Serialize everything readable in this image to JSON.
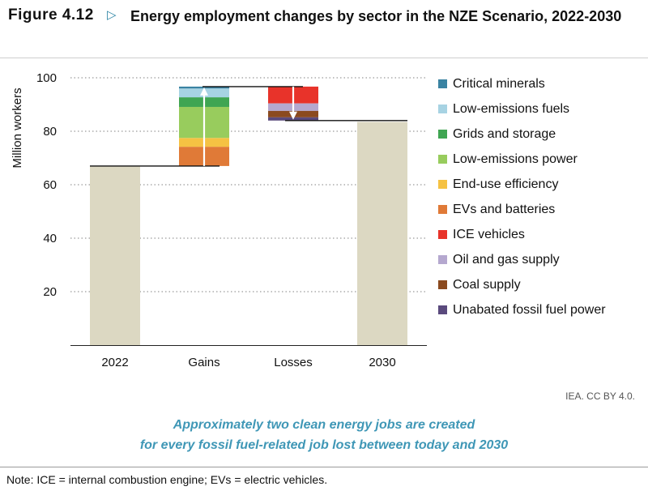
{
  "header": {
    "figure_label": "Figure 4.12",
    "arrow_glyph": "▷",
    "title": "Energy employment changes by sector in the NZE Scenario, 2022-2030"
  },
  "chart_data": {
    "type": "bar",
    "subtype": "waterfall",
    "categories": [
      "2022",
      "Gains",
      "Losses",
      "2030"
    ],
    "ylabel": "Million workers",
    "ylim": [
      0,
      100
    ],
    "yticks": [
      20,
      40,
      60,
      80,
      100
    ],
    "grid": "dotted horizontal",
    "legend_position": "right",
    "totals": [
      {
        "category": "2022",
        "value": 67,
        "color": "#dcd8c2"
      },
      {
        "category": "2030",
        "value": 83.5,
        "color": "#dcd8c2"
      }
    ],
    "series": [
      {
        "name": "Critical minerals",
        "color": "#3a83a2",
        "gains": 0.7,
        "losses": 0
      },
      {
        "name": "Low-emissions fuels",
        "color": "#a7d3e3",
        "gains": 3.3,
        "losses": 0
      },
      {
        "name": "Grids and storage",
        "color": "#3fa552",
        "gains": 3.6,
        "losses": 0
      },
      {
        "name": "Low-emissions power",
        "color": "#98cc5d",
        "gains": 11.6,
        "losses": 0
      },
      {
        "name": "End-use efficiency",
        "color": "#f5c243",
        "gains": 3.3,
        "losses": 0
      },
      {
        "name": "EVs and batteries",
        "color": "#e07a37",
        "gains": 7.2,
        "losses": 0
      },
      {
        "name": "ICE vehicles",
        "color": "#e8332a",
        "gains": 0,
        "losses": 6.3
      },
      {
        "name": "Oil and gas supply",
        "color": "#b5a8cf",
        "gains": 0,
        "losses": 2.8
      },
      {
        "name": "Coal supply",
        "color": "#8b4a1f",
        "gains": 0,
        "losses": 2.4
      },
      {
        "name": "Unabated fossil fuel power",
        "color": "#5a4a7d",
        "gains": 0,
        "losses": 1.2
      }
    ]
  },
  "credit": "IEA. CC BY 4.0.",
  "caption": {
    "line1": "Approximately two clean energy jobs are created",
    "line2": "for every fossil fuel-related job lost between today and 2030"
  },
  "note": "Note: ICE = internal combustion engine; EVs = electric vehicles."
}
